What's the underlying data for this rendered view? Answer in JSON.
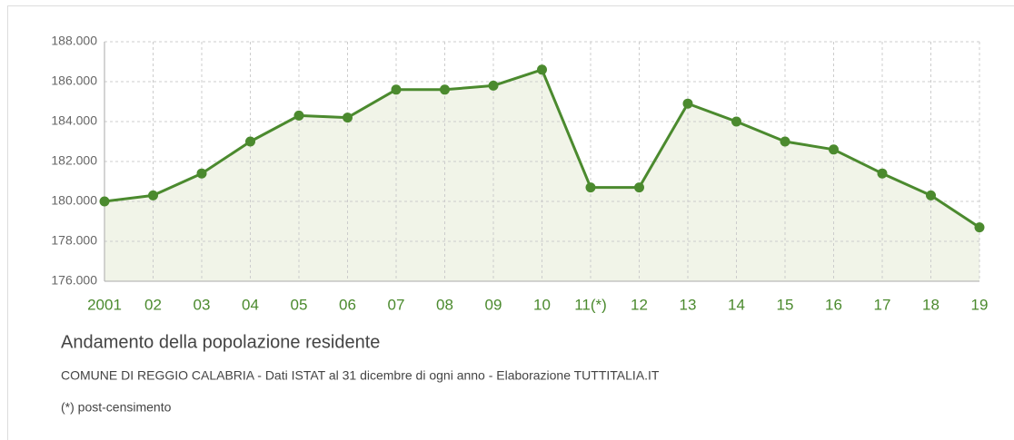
{
  "chart_data": {
    "type": "line",
    "title": "Andamento della popolazione residente",
    "subtitle": "COMUNE DI REGGIO CALABRIA - Dati ISTAT al 31 dicembre di ogni anno - Elaborazione TUTTITALIA.IT",
    "note": "(*) post-censimento",
    "categories": [
      "2001",
      "02",
      "03",
      "04",
      "05",
      "06",
      "07",
      "08",
      "09",
      "10",
      "11(*)",
      "12",
      "13",
      "14",
      "15",
      "16",
      "17",
      "18",
      "19"
    ],
    "series": [
      {
        "name": "Popolazione residente",
        "color": "#4b8a2e",
        "values": [
          180000,
          180300,
          181400,
          183000,
          184300,
          184200,
          185600,
          185600,
          185800,
          186600,
          180700,
          180700,
          184900,
          184000,
          183000,
          182600,
          181400,
          180300,
          178700
        ]
      }
    ],
    "ylim": [
      176000,
      188000
    ],
    "yticks": [
      {
        "value": 176000,
        "label": "176.000"
      },
      {
        "value": 178000,
        "label": "178.000"
      },
      {
        "value": 180000,
        "label": "180.000"
      },
      {
        "value": 182000,
        "label": "182.000"
      },
      {
        "value": 184000,
        "label": "184.000"
      },
      {
        "value": 186000,
        "label": "186.000"
      },
      {
        "value": 188000,
        "label": "188.000"
      }
    ],
    "grid": true,
    "area": true
  }
}
